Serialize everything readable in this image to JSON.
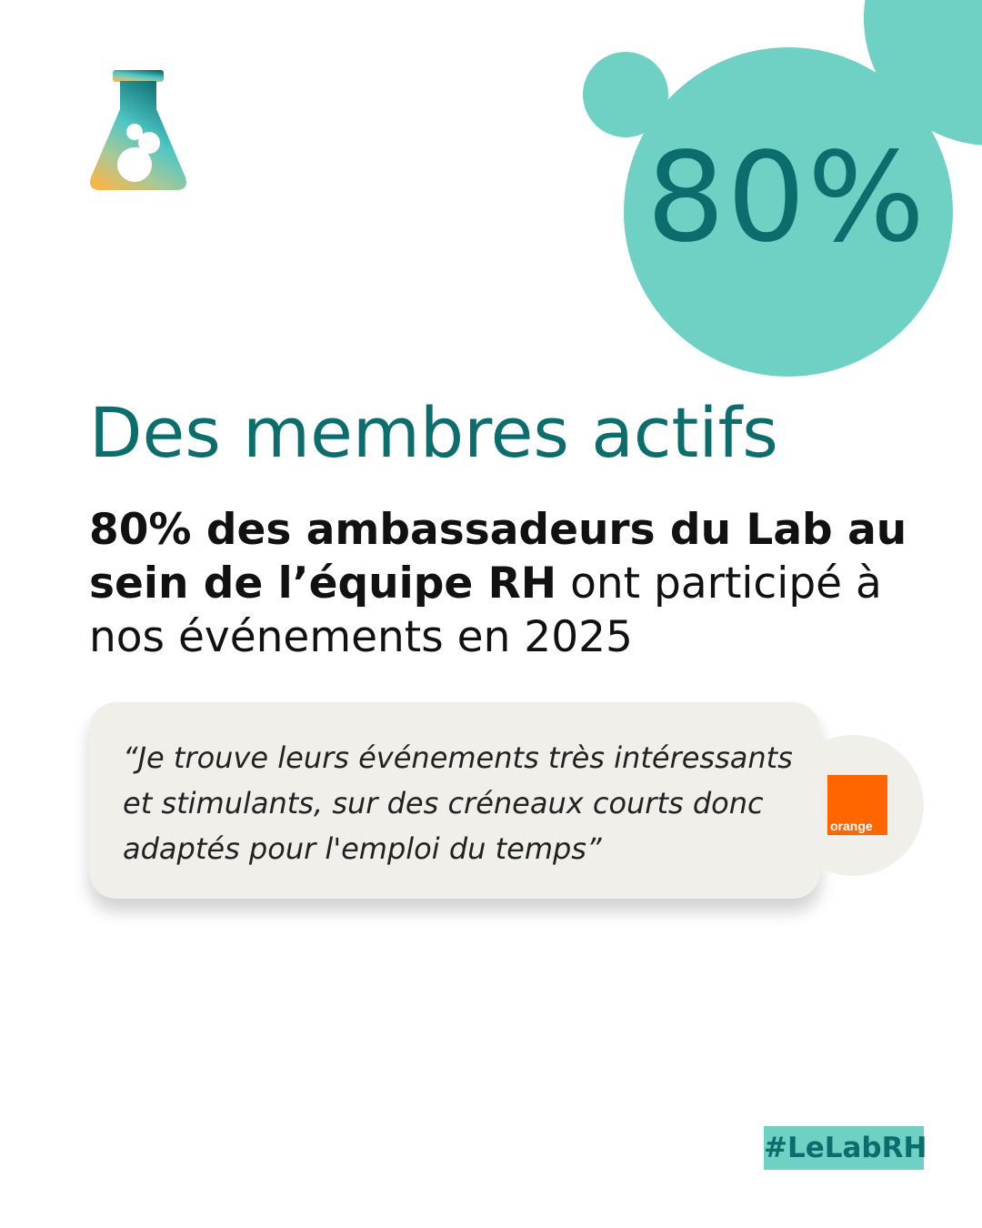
{
  "colors": {
    "teal_dark": "#0b6e6c",
    "teal_light": "#6fd1c4",
    "card_bg": "#f0efe9",
    "orange": "#ff6600"
  },
  "logo": {
    "icon": "flask-ampersand-icon"
  },
  "stat": {
    "value": "80%"
  },
  "title": "Des membres actifs",
  "body": {
    "bold": "80% des ambassadeurs du Lab au sein de l’équipe RH",
    "regular": " ont participé à nos événements en 2025"
  },
  "testimonial": {
    "quote": "“Je trouve leurs événements très intéressants et stimulants, sur des créneaux courts donc adaptés pour l'emploi du temps”",
    "company_logo": "orange",
    "company_logo_tm": "™"
  },
  "hashtag": "#LeLabRH"
}
